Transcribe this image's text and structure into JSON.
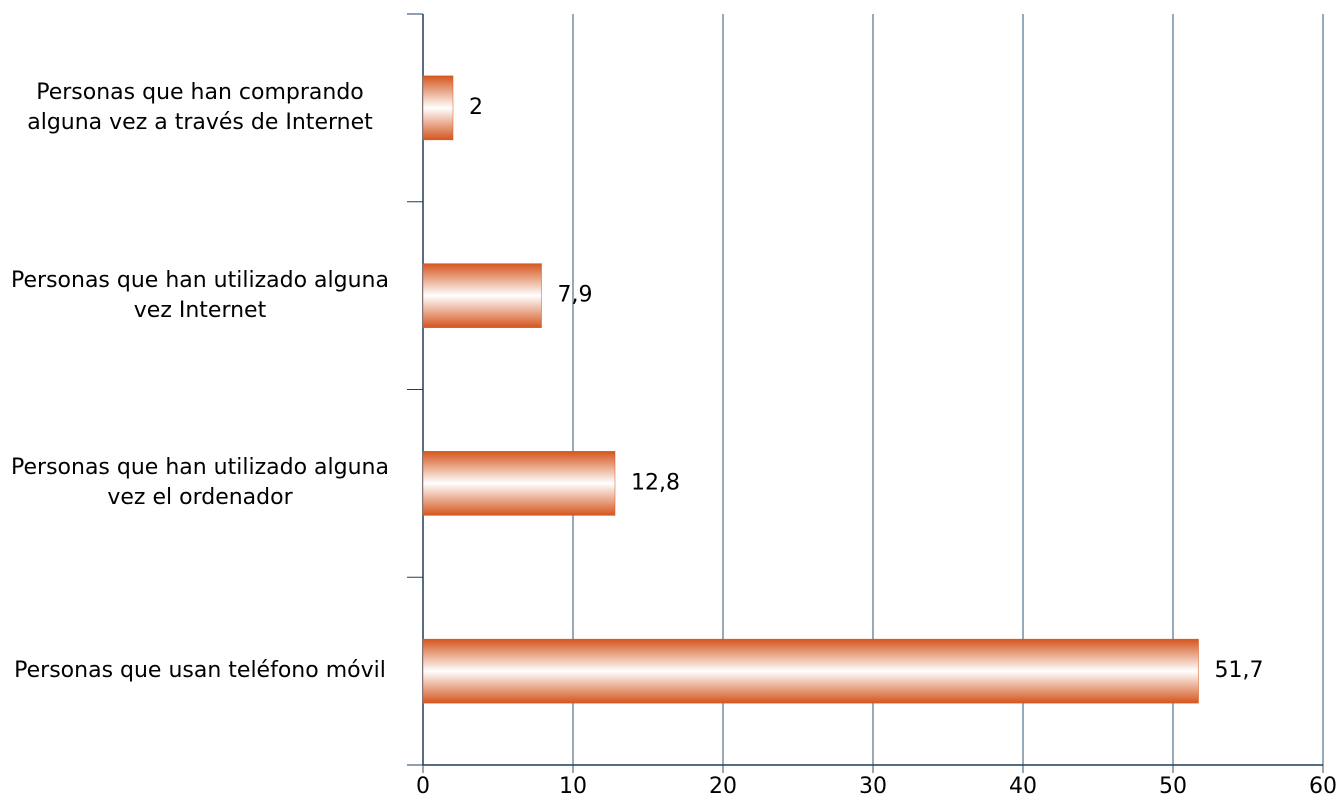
{
  "chart_data": {
    "type": "hbar",
    "categories": [
      "Personas que han comprando alguna vez a través de Internet",
      "Personas que han utilizado alguna vez Internet",
      "Personas que han utilizado alguna vez el ordenador",
      "Personas que usan teléfono móvil"
    ],
    "values": [
      2,
      7.9,
      12.8,
      51.7
    ],
    "value_labels": [
      "2",
      "7,9",
      "12,8",
      "51,7"
    ],
    "color": "#d4561e",
    "xlim": [
      0,
      60
    ],
    "xticks": [
      0,
      10,
      20,
      30,
      40,
      50,
      60
    ],
    "grid": true
  }
}
